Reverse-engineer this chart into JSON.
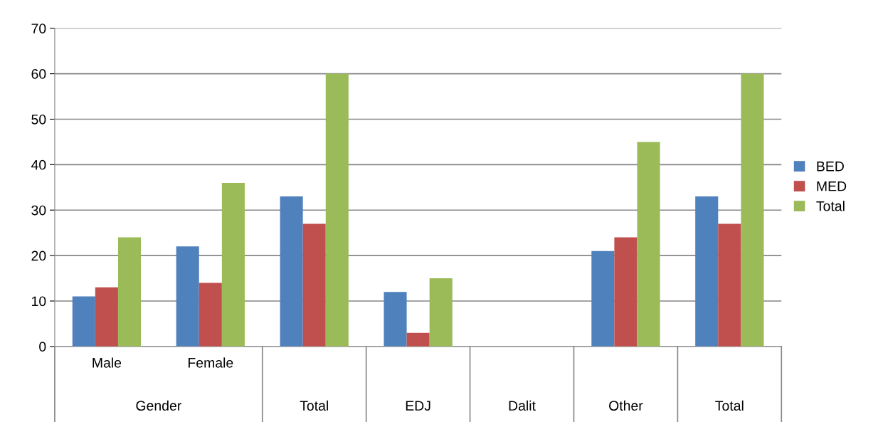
{
  "chart_data": {
    "type": "bar",
    "categories": [
      "Male",
      "Female",
      "Total",
      "EDJ",
      "Dalit",
      "Other",
      "Total"
    ],
    "series": [
      {
        "name": "BED",
        "color": "#4f81bd",
        "values": [
          11,
          22,
          33,
          12,
          0,
          21,
          33
        ]
      },
      {
        "name": "MED",
        "color": "#c0504d",
        "values": [
          13,
          14,
          27,
          3,
          0,
          24,
          27
        ]
      },
      {
        "name": "Total",
        "color": "#9bbb59",
        "values": [
          24,
          36,
          60,
          15,
          0,
          45,
          60
        ]
      }
    ],
    "annotations": [
      "Gender"
    ],
    "ylim": [
      0,
      70
    ],
    "yticks": [
      0,
      10,
      20,
      30,
      40,
      50,
      60,
      70
    ],
    "grid": "y",
    "legend": "right"
  }
}
